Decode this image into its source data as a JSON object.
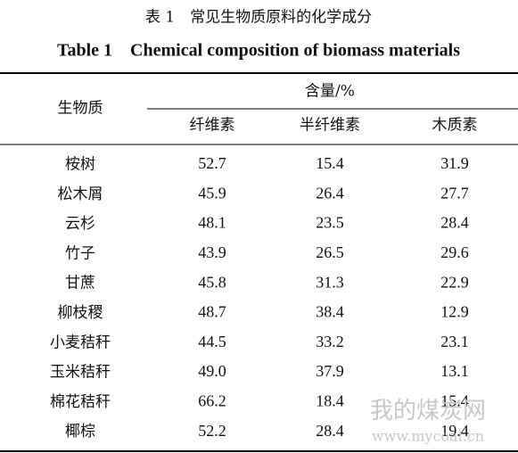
{
  "header": {
    "title_cn": "表 1　常见生物质原料的化学成分",
    "title_en": "Table 1　Chemical composition of biomass materials"
  },
  "table": {
    "row_header": "生物质",
    "group_header": "含量/%",
    "columns": [
      "纤维素",
      "半纤维素",
      "木质素"
    ],
    "rows": [
      [
        "桉树",
        "52.7",
        "15.4",
        "31.9"
      ],
      [
        "松木屑",
        "45.9",
        "26.4",
        "27.7"
      ],
      [
        "云杉",
        "48.1",
        "23.5",
        "28.4"
      ],
      [
        "竹子",
        "43.9",
        "26.5",
        "29.6"
      ],
      [
        "甘蔗",
        "45.8",
        "31.3",
        "22.9"
      ],
      [
        "柳枝稷",
        "48.7",
        "38.4",
        "12.9"
      ],
      [
        "小麦秸秆",
        "44.5",
        "33.2",
        "23.1"
      ],
      [
        "玉米秸秆",
        "49.0",
        "37.9",
        "13.1"
      ],
      [
        "棉花秸秆",
        "66.2",
        "18.4",
        "15.4"
      ],
      [
        "椰棕",
        "52.2",
        "28.4",
        "19.4"
      ]
    ]
  },
  "watermark": {
    "text": "我的煤炭网",
    "url": "www.mycoal.cn"
  }
}
